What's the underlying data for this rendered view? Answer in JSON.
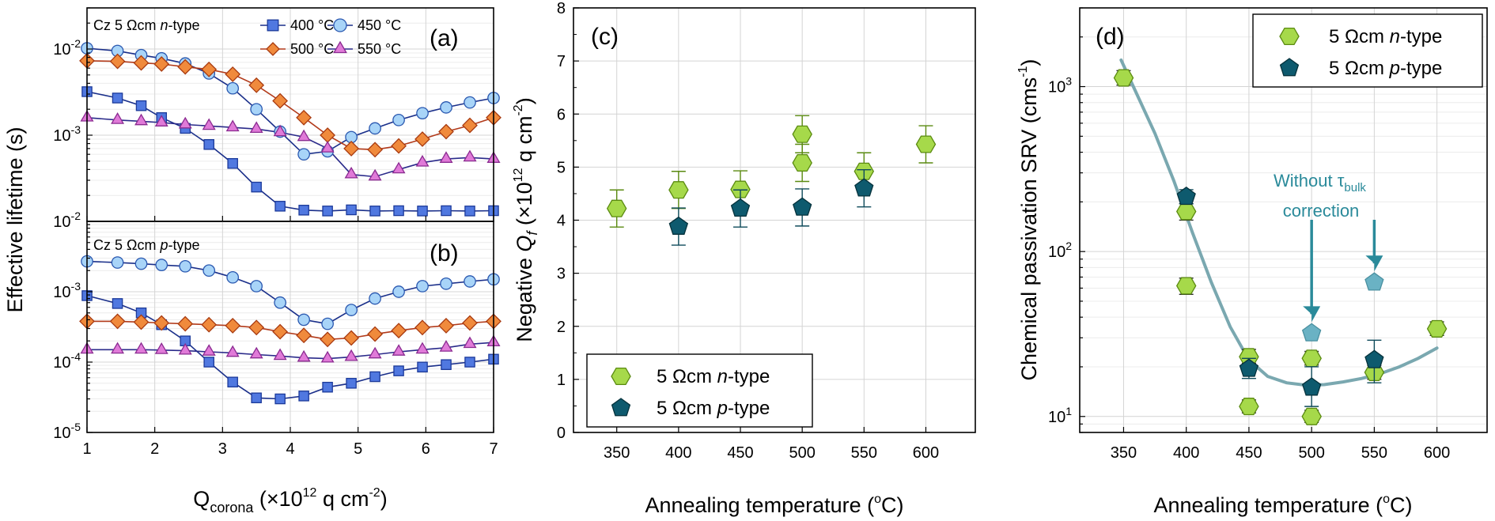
{
  "figure": {
    "shared_ylabel": "Effective lifetime (s)",
    "xlabel_ab": {
      "main": "Q",
      "sub": "corona",
      "rest": " (×10",
      "exp": "12",
      "unit": " q cm",
      "unit_exp": "-2",
      "close": ")"
    }
  },
  "colors": {
    "s400": "#5078e0",
    "s450": "#a8d4f8",
    "s500": "#f08a3c",
    "s550": "#e07ad8",
    "line400": "#1a2f8a",
    "line450": "#1a2f8a",
    "line500": "#b23a1a",
    "line550": "#2a2a8a",
    "ntype": "#a6d94a",
    "ntype_edge": "#5a8a10",
    "ptype": "#0e5a6e",
    "ptype_edge": "#06323c",
    "fit": "#7aa8b0",
    "annot": "#2a8a9a",
    "uncorr": "#6ab2c4"
  },
  "chart_data": [
    {
      "id": "a",
      "type": "line",
      "panel_label": "(a)",
      "title": "Cz 5 Ωcm n-type",
      "title_parts": {
        "pre": "Cz 5 Ωcm ",
        "italic": "n",
        "post": "-type"
      },
      "xlim": [
        1,
        7
      ],
      "ylim": [
        0.0001,
        0.03
      ],
      "yscale": "log",
      "xticks": [
        1,
        2,
        3,
        4,
        5,
        6,
        7
      ],
      "yticks": [
        {
          "v": 0.001,
          "base": "10",
          "exp": "-3"
        },
        {
          "v": 0.01,
          "base": "10",
          "exp": "-2"
        }
      ],
      "x": [
        1,
        1.45,
        1.8,
        2.1,
        2.45,
        2.8,
        3.15,
        3.5,
        3.85,
        4.2,
        4.55,
        4.9,
        5.25,
        5.6,
        5.95,
        6.3,
        6.65,
        7
      ],
      "series": [
        {
          "name": "400 °C",
          "marker": "square",
          "color_key": "s400",
          "line_key": "line400",
          "values": [
            0.0032,
            0.0027,
            0.0022,
            0.0016,
            0.0012,
            0.00078,
            0.00047,
            0.00025,
            0.00015,
            0.000135,
            0.000132,
            0.000136,
            0.000132,
            0.000133,
            0.000132,
            0.000133,
            0.000132,
            0.000133
          ]
        },
        {
          "name": "450 °C",
          "marker": "circle",
          "color_key": "s450",
          "line_key": "line450",
          "values": [
            0.0102,
            0.0095,
            0.0085,
            0.0078,
            0.0068,
            0.0052,
            0.0035,
            0.002,
            0.0011,
            0.0006,
            0.00065,
            0.00095,
            0.0012,
            0.0015,
            0.0018,
            0.0021,
            0.0024,
            0.0027
          ]
        },
        {
          "name": "500 °C",
          "marker": "diamond",
          "color_key": "s500",
          "line_key": "line500",
          "values": [
            0.0073,
            0.0072,
            0.0069,
            0.0067,
            0.0062,
            0.0058,
            0.0051,
            0.0038,
            0.0025,
            0.0016,
            0.001,
            0.0007,
            0.00068,
            0.00075,
            0.0009,
            0.0011,
            0.0013,
            0.0016
          ]
        },
        {
          "name": "550 °C",
          "marker": "triangle",
          "color_key": "s550",
          "line_key": "line550",
          "values": [
            0.0016,
            0.0015,
            0.00145,
            0.0014,
            0.00133,
            0.00128,
            0.00123,
            0.00118,
            0.00108,
            0.00095,
            0.0007,
            0.00035,
            0.00033,
            0.0004,
            0.00048,
            0.00053,
            0.00055,
            0.00053
          ]
        }
      ],
      "legend": [
        "400 °C",
        "450 °C",
        "500 °C",
        "550 °C"
      ]
    },
    {
      "id": "b",
      "type": "line",
      "panel_label": "(b)",
      "title": "Cz 5 Ωcm p-type",
      "title_parts": {
        "pre": "Cz 5 Ωcm ",
        "italic": "p",
        "post": "-type"
      },
      "xlim": [
        1,
        7
      ],
      "ylim": [
        1e-05,
        0.01
      ],
      "yscale": "log",
      "xticks": [
        1,
        2,
        3,
        4,
        5,
        6,
        7
      ],
      "yticks": [
        {
          "v": 1e-05,
          "base": "10",
          "exp": "-5"
        },
        {
          "v": 0.0001,
          "base": "10",
          "exp": "-4"
        },
        {
          "v": 0.001,
          "base": "10",
          "exp": "-3"
        },
        {
          "v": 0.01,
          "base": "10",
          "exp": "-2"
        }
      ],
      "x": [
        1,
        1.45,
        1.8,
        2.1,
        2.45,
        2.8,
        3.15,
        3.5,
        3.85,
        4.2,
        4.55,
        4.9,
        5.25,
        5.6,
        5.95,
        6.3,
        6.65,
        7
      ],
      "series": [
        {
          "name": "400 °C",
          "marker": "square",
          "color_key": "s400",
          "line_key": "line400",
          "values": [
            0.00088,
            0.00068,
            0.0005,
            0.00034,
            0.0002,
            0.0001,
            5.2e-05,
            3.1e-05,
            3e-05,
            3.3e-05,
            4.4e-05,
            5e-05,
            6.2e-05,
            7.5e-05,
            8.5e-05,
            9.2e-05,
            0.0001,
            0.00011
          ]
        },
        {
          "name": "450 °C",
          "marker": "circle",
          "color_key": "s450",
          "line_key": "line450",
          "values": [
            0.0027,
            0.0026,
            0.0025,
            0.0024,
            0.0023,
            0.002,
            0.0016,
            0.0012,
            0.0007,
            0.0004,
            0.00035,
            0.00055,
            0.0008,
            0.001,
            0.0012,
            0.0013,
            0.0014,
            0.0015
          ]
        },
        {
          "name": "500 °C",
          "marker": "diamond",
          "color_key": "s500",
          "line_key": "line500",
          "values": [
            0.00038,
            0.00038,
            0.00037,
            0.00036,
            0.00035,
            0.00034,
            0.00033,
            0.00031,
            0.00027,
            0.00024,
            0.00021,
            0.00022,
            0.00025,
            0.00028,
            0.00031,
            0.00033,
            0.00036,
            0.00038
          ]
        },
        {
          "name": "550 °C",
          "marker": "triangle",
          "color_key": "s550",
          "line_key": "line550",
          "values": [
            0.00015,
            0.00015,
            0.00015,
            0.000148,
            0.000145,
            0.00014,
            0.000135,
            0.000128,
            0.000122,
            0.000115,
            0.000112,
            0.000118,
            0.000128,
            0.00014,
            0.00015,
            0.00016,
            0.00018,
            0.00019
          ]
        }
      ]
    },
    {
      "id": "c",
      "type": "scatter",
      "panel_label": "(c)",
      "xlabel": {
        "main": "Annealing temperature (",
        "sup": "o",
        "post": "C)"
      },
      "ylabel": {
        "pre": "Negative ",
        "q": "Q",
        "qsub": "f",
        "rest": " (×10",
        "exp": "12",
        "unit": " q cm",
        "unit_exp": "-2",
        "close": ")"
      },
      "xlim": [
        315,
        640
      ],
      "ylim": [
        0,
        8
      ],
      "xticks": [
        350,
        400,
        450,
        500,
        550,
        600
      ],
      "yticks": [
        0,
        1,
        2,
        3,
        4,
        5,
        6,
        7,
        8
      ],
      "series": [
        {
          "name": "5 Ωcm n-type",
          "marker": "hexagon",
          "color_key": "ntype",
          "points": [
            {
              "x": 350,
              "y": 4.22,
              "err": 0.35
            },
            {
              "x": 400,
              "y": 4.57,
              "err": 0.35
            },
            {
              "x": 450,
              "y": 4.58,
              "err": 0.35
            },
            {
              "x": 500,
              "y": 5.08,
              "err": 0.35
            },
            {
              "x": 500,
              "y": 5.62,
              "err": 0.35
            },
            {
              "x": 550,
              "y": 4.92,
              "err": 0.35
            },
            {
              "x": 600,
              "y": 5.43,
              "err": 0.35
            }
          ]
        },
        {
          "name": "5 Ωcm p-type",
          "marker": "pentagon",
          "color_key": "ptype",
          "points": [
            {
              "x": 400,
              "y": 3.88,
              "err": 0.35
            },
            {
              "x": 450,
              "y": 4.22,
              "err": 0.35
            },
            {
              "x": 500,
              "y": 4.24,
              "err": 0.35
            },
            {
              "x": 550,
              "y": 4.6,
              "err": 0.35
            }
          ]
        }
      ],
      "legend": [
        {
          "pre": "5 Ωcm ",
          "italic": "n",
          "post": "-type"
        },
        {
          "pre": "5 Ωcm ",
          "italic": "p",
          "post": "-type"
        }
      ]
    },
    {
      "id": "d",
      "type": "scatter",
      "panel_label": "(d)",
      "yscale": "log",
      "xlabel": {
        "main": "Annealing temperature (",
        "sup": "o",
        "post": "C)"
      },
      "ylabel": {
        "pre": "Chemical passivation SRV (cms",
        "sup": "-1",
        "close": ")"
      },
      "xlim": [
        315,
        640
      ],
      "ylim": [
        8,
        3000
      ],
      "xticks": [
        350,
        400,
        450,
        500,
        550,
        600
      ],
      "yticks": [
        {
          "v": 10,
          "base": "10",
          "exp": "1"
        },
        {
          "v": 100,
          "base": "10",
          "exp": "2"
        },
        {
          "v": 1000,
          "base": "10",
          "exp": "3"
        }
      ],
      "series": [
        {
          "name": "5 Ωcm n-type",
          "marker": "hexagon",
          "color_key": "ntype",
          "points": [
            {
              "x": 350,
              "y": 1130,
              "lo": 1020,
              "hi": 1250
            },
            {
              "x": 400,
              "y": 175,
              "lo": 155,
              "hi": 195
            },
            {
              "x": 400,
              "y": 62,
              "lo": 55,
              "hi": 69
            },
            {
              "x": 450,
              "y": 23,
              "lo": 21,
              "hi": 25.5
            },
            {
              "x": 450,
              "y": 11.5,
              "lo": 10.5,
              "hi": 12.6
            },
            {
              "x": 500,
              "y": 22.5,
              "lo": 20.5,
              "hi": 24.8
            },
            {
              "x": 500,
              "y": 10,
              "lo": 9.2,
              "hi": 10.9
            },
            {
              "x": 550,
              "y": 18.5,
              "lo": 16.8,
              "hi": 20.4
            },
            {
              "x": 600,
              "y": 34,
              "lo": 31,
              "hi": 37.5
            }
          ]
        },
        {
          "name": "5 Ωcm p-type",
          "marker": "pentagon",
          "color_key": "ptype",
          "points": [
            {
              "x": 400,
              "y": 215,
              "lo": 195,
              "hi": 237
            },
            {
              "x": 450,
              "y": 19.5,
              "lo": 17,
              "hi": 22.5
            },
            {
              "x": 500,
              "y": 15,
              "lo": 11.5,
              "hi": 20
            },
            {
              "x": 550,
              "y": 22,
              "lo": 16,
              "hi": 29
            }
          ]
        },
        {
          "name": "Without τbulk correction",
          "marker": "pentagon",
          "color_key": "uncorr",
          "points": [
            {
              "x": 500,
              "y": 32
            },
            {
              "x": 550,
              "y": 65
            }
          ]
        }
      ],
      "fit_curve": {
        "x": [
          348,
          360,
          375,
          390,
          405,
          420,
          435,
          450,
          465,
          480,
          495,
          510,
          525,
          540,
          555,
          570,
          585,
          600
        ],
        "y": [
          1450,
          920,
          520,
          270,
          130,
          65,
          35,
          22,
          17.5,
          16,
          15.5,
          15.6,
          16.2,
          17,
          18.2,
          20,
          22.5,
          26
        ]
      },
      "annotation": {
        "line1": "Without τ",
        "sub": "bulk",
        "line2": "correction"
      },
      "legend": [
        {
          "pre": "5 Ωcm ",
          "italic": "n",
          "post": "-type"
        },
        {
          "pre": "5 Ωcm ",
          "italic": "p",
          "post": "-type"
        }
      ]
    }
  ]
}
